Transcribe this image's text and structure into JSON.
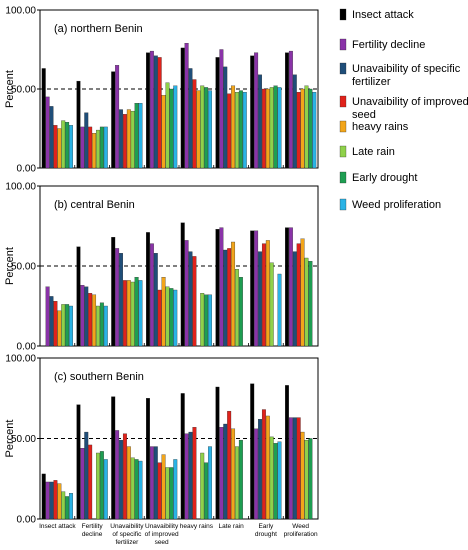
{
  "chart_data": [
    {
      "type": "bar",
      "title": "(a) northern Benin",
      "ylabel": "Percent",
      "ylim": [
        0,
        100
      ],
      "yticks": [
        "0.00",
        "50.00",
        "100.00"
      ],
      "reference_line": 50,
      "categories": [
        "Insect attack",
        "Fertility decline",
        "Unavaibility of specific fertilizer",
        "Unavaibility of improved seed",
        "heavy rains",
        "Late rain",
        "Early drought",
        "Weed proliferation"
      ],
      "series": [
        {
          "name": "Insect attack",
          "values": [
            63,
            55,
            61,
            73,
            76,
            70,
            71,
            73
          ]
        },
        {
          "name": "Fertility decline",
          "values": [
            45,
            26,
            65,
            74,
            79,
            75,
            73,
            74
          ]
        },
        {
          "name": "Unavaibility of specific fertilizer",
          "values": [
            39,
            35,
            37,
            71,
            63,
            64,
            59,
            59
          ]
        },
        {
          "name": "Unavaibility of improved seed",
          "values": [
            27,
            26,
            34,
            70,
            56,
            47,
            50,
            48
          ]
        },
        {
          "name": "heavy rains",
          "values": [
            25,
            22,
            37,
            46,
            49,
            52,
            50,
            50
          ]
        },
        {
          "name": "Late rain",
          "values": [
            30,
            24,
            36,
            54,
            52,
            48,
            51,
            52
          ]
        },
        {
          "name": "Early drought",
          "values": [
            29,
            26,
            41,
            50,
            51,
            49,
            52,
            50
          ]
        },
        {
          "name": "Weed proliferation",
          "values": [
            27,
            26,
            41,
            52,
            49,
            48,
            51,
            48
          ]
        }
      ]
    },
    {
      "type": "bar",
      "title": "(b)  central Benin",
      "ylabel": "Percent",
      "ylim": [
        0,
        100
      ],
      "yticks": [
        "0.00",
        "50.00",
        "100.00"
      ],
      "reference_line": 50,
      "categories": [
        "Insect attack",
        "Fertility decline",
        "Unavaibility of specific fertilizer",
        "Unavaibility of improved seed",
        "heavy rains",
        "Late rain",
        "Early drought",
        "Weed proliferation"
      ],
      "series": [
        {
          "name": "Insect attack",
          "values": [
            0,
            62,
            68,
            71,
            77,
            73,
            72,
            74
          ]
        },
        {
          "name": "Fertility decline",
          "values": [
            37,
            38,
            61,
            64,
            66,
            74,
            72,
            74
          ]
        },
        {
          "name": "Unavaibility of specific fertilizer",
          "values": [
            31,
            37,
            58,
            58,
            59,
            60,
            59,
            59
          ]
        },
        {
          "name": "Unavaibility of improved seed",
          "values": [
            28,
            33,
            41,
            35,
            56,
            61,
            64,
            64
          ]
        },
        {
          "name": "heavy rains",
          "values": [
            22,
            32,
            41,
            43,
            0,
            65,
            66,
            67
          ]
        },
        {
          "name": "Late rain",
          "values": [
            26,
            25,
            40,
            37,
            33,
            48,
            52,
            55
          ]
        },
        {
          "name": "Early drought",
          "values": [
            26,
            27,
            43,
            36,
            32,
            43,
            0,
            53
          ]
        },
        {
          "name": "Weed proliferation",
          "values": [
            25,
            25,
            41,
            35,
            32,
            0,
            45,
            0
          ]
        }
      ]
    },
    {
      "type": "bar",
      "title": "(c)  southern Benin",
      "ylabel": "Percent",
      "ylim": [
        0,
        100
      ],
      "yticks": [
        "0.00",
        "50.00",
        "100.00"
      ],
      "reference_line": 50,
      "categories": [
        "Insect attack",
        "Fertility decline",
        "Unavaibility of specific fertilizer",
        "Unavaibility of improved seed",
        "heavy rains",
        "Late rain",
        "Early drought",
        "Weed proliferation"
      ],
      "series": [
        {
          "name": "Insect attack",
          "values": [
            28,
            71,
            76,
            75,
            78,
            82,
            84,
            83
          ]
        },
        {
          "name": "Fertility decline",
          "values": [
            23,
            44,
            55,
            45,
            53,
            57,
            56,
            63
          ]
        },
        {
          "name": "Unavaibility of specific fertilizer",
          "values": [
            23,
            54,
            49,
            45,
            54,
            59,
            62,
            63
          ]
        },
        {
          "name": "Unavaibility of improved seed",
          "values": [
            24,
            46,
            53,
            35,
            57,
            67,
            68,
            63
          ]
        },
        {
          "name": "heavy rains",
          "values": [
            22,
            0,
            45,
            40,
            0,
            56,
            64,
            54
          ]
        },
        {
          "name": "Late rain",
          "values": [
            17,
            41,
            38,
            32,
            41,
            45,
            51,
            49
          ]
        },
        {
          "name": "Early drought",
          "values": [
            14,
            42,
            37,
            32,
            35,
            49,
            47,
            50
          ]
        },
        {
          "name": "Weed proliferation",
          "values": [
            16,
            37,
            36,
            37,
            45,
            0,
            48,
            0
          ]
        }
      ]
    }
  ],
  "legend": {
    "placement": "right",
    "entries": [
      "Insect attack",
      "Fertility decline",
      "Unavaibility of specific fertilizer",
      "Unavaibility of improved seed",
      "heavy rains",
      "Late rain",
      "Early drought",
      "Weed proliferation"
    ]
  },
  "colors": [
    "#000000",
    "#8a33a8",
    "#1f4e79",
    "#e0221b",
    "#f2a51a",
    "#8fd14a",
    "#1e9e52",
    "#2ab3e6"
  ],
  "category_label_lines": [
    [
      "Insect attack"
    ],
    [
      "Fertility",
      "decline"
    ],
    [
      "Unavaibility",
      "of specific",
      "fertilizer"
    ],
    [
      "Unavaibility",
      "of improved",
      "seed"
    ],
    [
      "heavy rains"
    ],
    [
      "Late rain"
    ],
    [
      "Early",
      "drought"
    ],
    [
      "Weed",
      "proliferation"
    ]
  ]
}
